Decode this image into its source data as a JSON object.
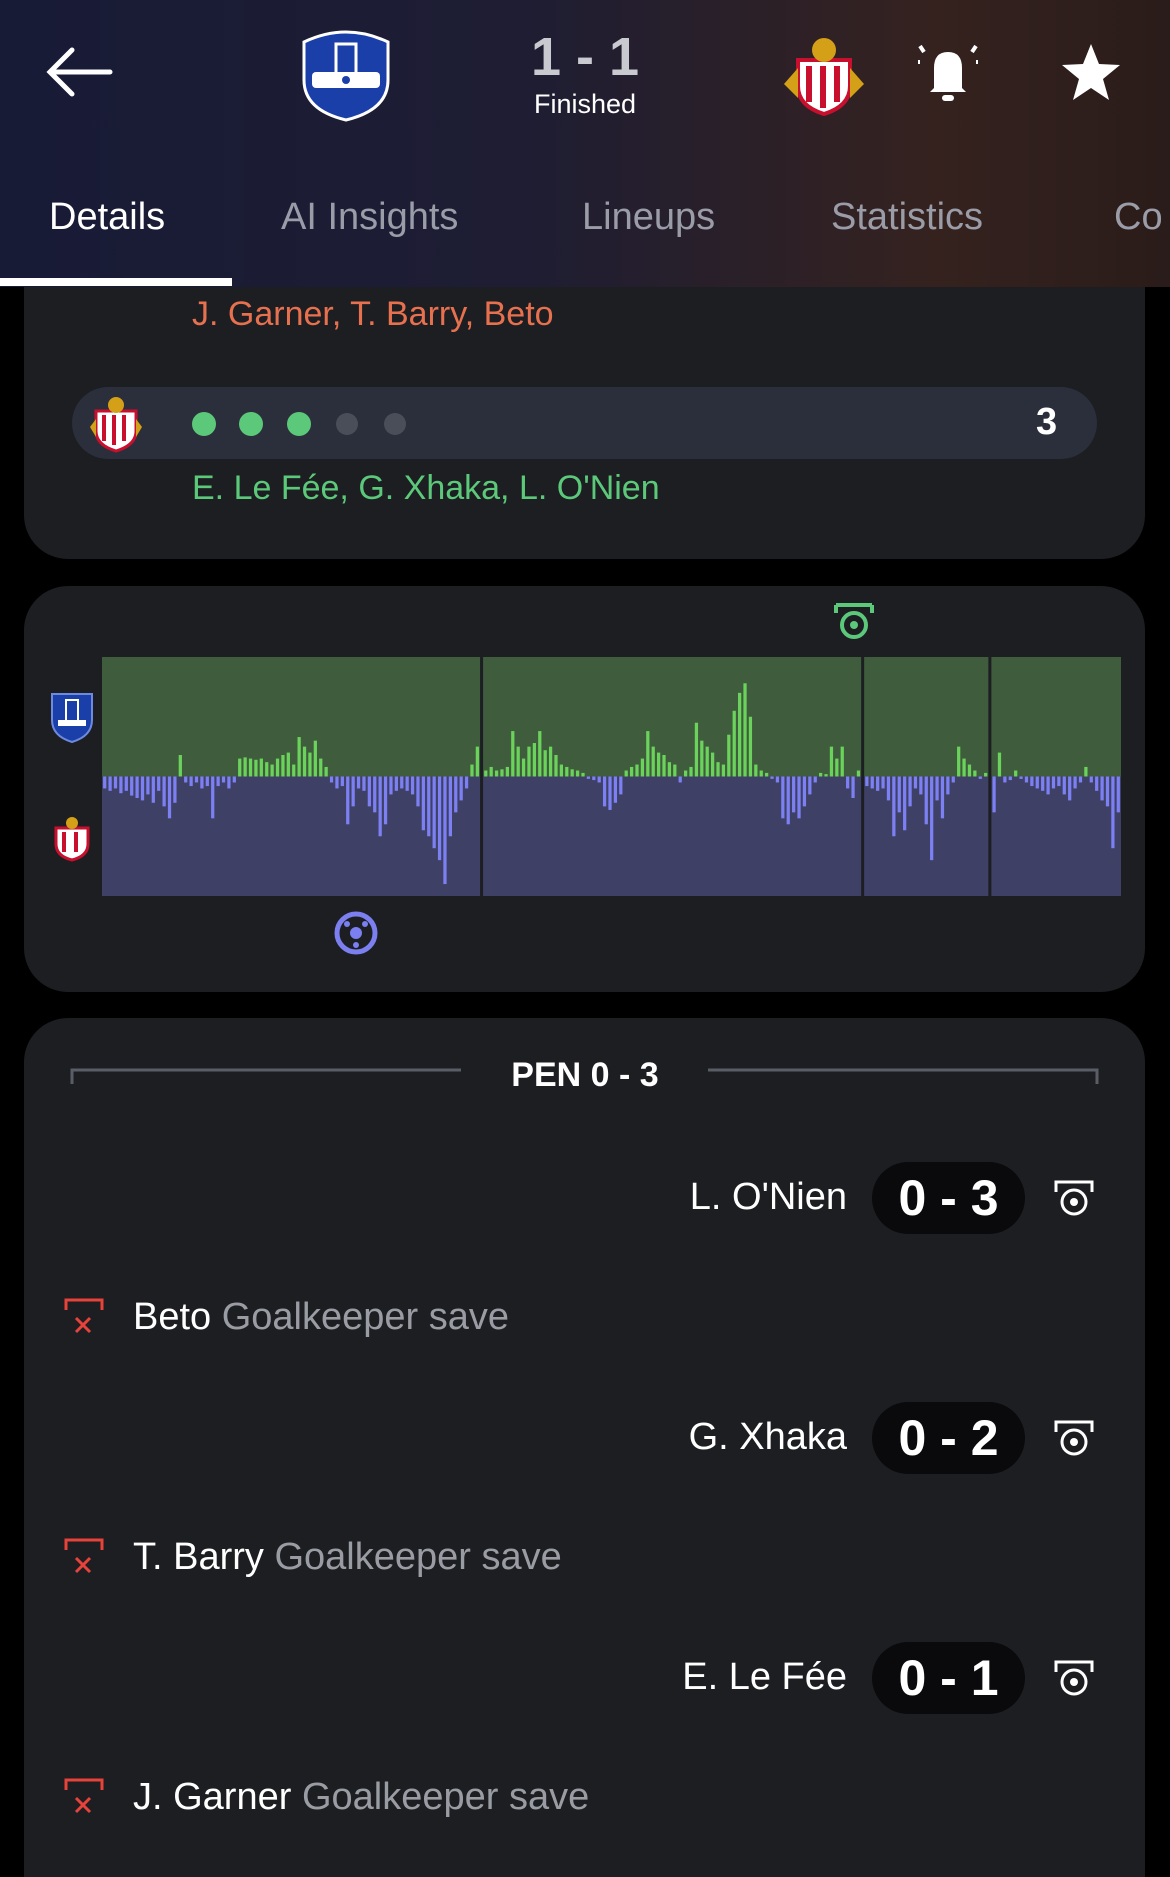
{
  "header": {
    "score": "1 - 1",
    "status": "Finished"
  },
  "tabs": [
    "Details",
    "AI Insights",
    "Lineups",
    "Statistics",
    "Co"
  ],
  "shootout_summary": {
    "home_takers": "J. Garner, T. Barry, Beto",
    "away_score": "3",
    "away_takers": "E. Le Fée, G. Xhaka, L. O'Nien"
  },
  "momentum": {
    "periods": [
      [
        -10,
        -12,
        -10,
        -14,
        -12,
        -16,
        -18,
        -20,
        -15,
        -22,
        -12,
        -25,
        -35,
        -22,
        18,
        -5,
        -8,
        -5,
        -10,
        -8,
        -35,
        -8,
        -5,
        -10,
        -5,
        15,
        16,
        15,
        14,
        15,
        12,
        10,
        15,
        18,
        20,
        10,
        33,
        25,
        20,
        30,
        15,
        8,
        -5,
        -10,
        -8,
        -40,
        -25,
        -10,
        -12,
        -25,
        -30,
        -50,
        -40,
        -15,
        -12,
        -10,
        -12,
        -15,
        -25,
        -45,
        -50,
        -60,
        -70,
        -90,
        -50,
        -30,
        -20,
        -10,
        10,
        25
      ],
      [
        5,
        8,
        5,
        6,
        8,
        38,
        25,
        15,
        25,
        28,
        38,
        22,
        25,
        18,
        10,
        8,
        6,
        5,
        3,
        -2,
        -3,
        -5,
        -25,
        -28,
        -22,
        -15,
        5,
        8,
        10,
        15,
        38,
        25,
        20,
        18,
        12,
        10,
        -5,
        5,
        8,
        45,
        30,
        25,
        20,
        12,
        10,
        35,
        55,
        70,
        78,
        50,
        10,
        5,
        3,
        -2,
        -5,
        -35,
        -40,
        -30,
        -35,
        -25,
        -15,
        -5,
        3,
        2,
        25,
        15,
        25,
        -10,
        -18,
        5
      ],
      [
        -8,
        -10,
        -12,
        -10,
        -20,
        -50,
        -30,
        -45,
        -25,
        -10,
        -15,
        -40,
        -70,
        -20,
        -35,
        -15,
        -5,
        25,
        15,
        10,
        5,
        -2,
        3
      ],
      [
        -30,
        20,
        -5,
        -3,
        5,
        -2,
        -5,
        -8,
        -10,
        -12,
        -15,
        -10,
        -8,
        -15,
        -20,
        -10,
        -5,
        8,
        -5,
        -12,
        -20,
        -25,
        -60,
        -30
      ]
    ],
    "ylim": [
      -100,
      100
    ]
  },
  "penalties": {
    "title": "PEN 0 - 3",
    "events": [
      {
        "type": "goal",
        "player": "L. O'Nien",
        "score": "0 - 3"
      },
      {
        "type": "miss",
        "player": "Beto",
        "result": "Goalkeeper save"
      },
      {
        "type": "goal",
        "player": "G. Xhaka",
        "score": "0 - 2"
      },
      {
        "type": "miss",
        "player": "T. Barry",
        "result": "Goalkeeper save"
      },
      {
        "type": "goal",
        "player": "E. Le Fée",
        "score": "0 - 1"
      },
      {
        "type": "miss",
        "player": "J. Garner",
        "result": "Goalkeeper save"
      }
    ]
  }
}
